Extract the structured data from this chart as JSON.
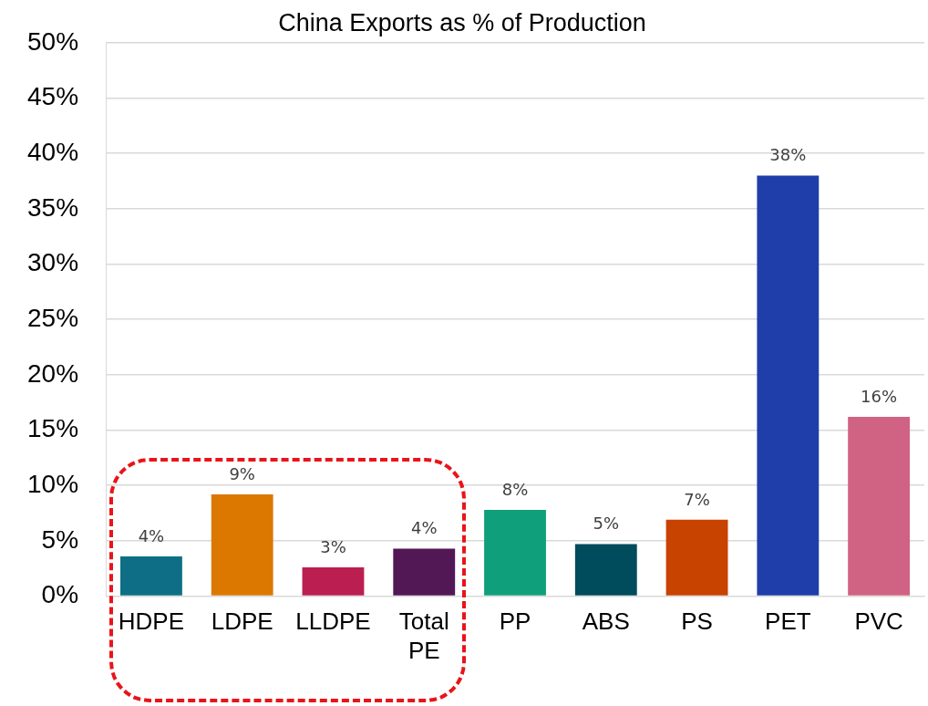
{
  "chart_data": {
    "type": "bar",
    "title": "China Exports as % of Production",
    "categories": [
      "HDPE",
      "LDPE",
      "LLDPE",
      "Total PE",
      "PP",
      "ABS",
      "PS",
      "PET",
      "PVC"
    ],
    "values": [
      3.6,
      9.2,
      2.6,
      4.3,
      7.8,
      4.7,
      6.9,
      38.0,
      16.2
    ],
    "value_labels": [
      "4%",
      "9%",
      "3%",
      "4%",
      "8%",
      "5%",
      "7%",
      "38%",
      "16%"
    ],
    "colors": [
      "#0e6e85",
      "#dc7800",
      "#bb1e50",
      "#521755",
      "#0fa07b",
      "#004b5c",
      "#c84200",
      "#1f3eaa",
      "#d06283"
    ],
    "ylim": [
      0,
      50
    ],
    "yticks": [
      {
        "value": 0,
        "label": "0%"
      },
      {
        "value": 5,
        "label": "5%"
      },
      {
        "value": 10,
        "label": "10%"
      },
      {
        "value": 15,
        "label": "15%"
      },
      {
        "value": 20,
        "label": "20%"
      },
      {
        "value": 25,
        "label": "25%"
      },
      {
        "value": 30,
        "label": "30%"
      },
      {
        "value": 35,
        "label": "35%"
      },
      {
        "value": 40,
        "label": "40%"
      },
      {
        "value": 45,
        "label": "45%"
      },
      {
        "value": 50,
        "label": "50%"
      }
    ],
    "grid": "y",
    "legend": false
  }
}
